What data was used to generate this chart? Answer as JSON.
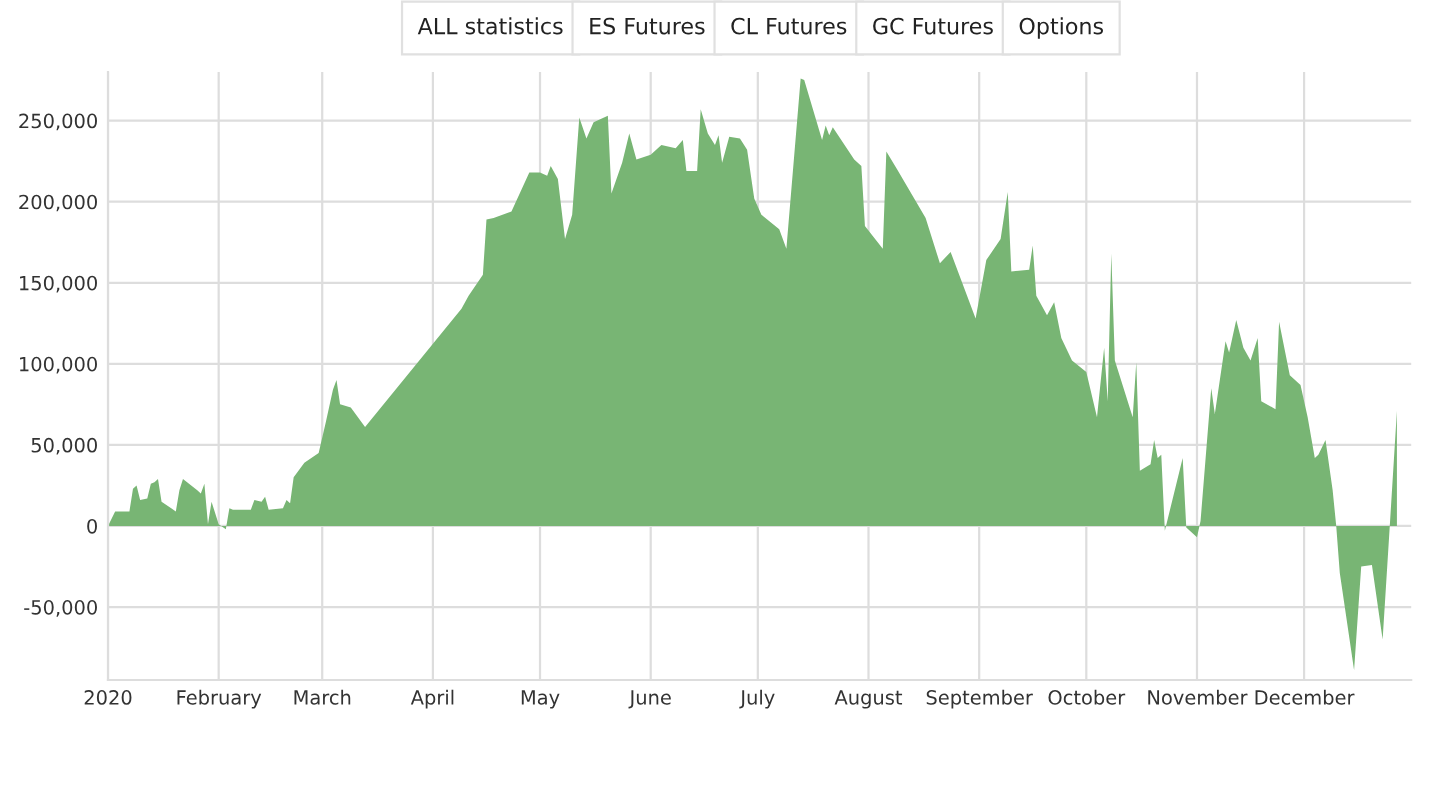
{
  "chart_data": {
    "type": "area",
    "annotations": [
      "ALL statistics",
      "ES Futures",
      "CL Futures",
      "GC Futures",
      "Options"
    ],
    "x": [
      "2020-01-01",
      "2020-01-03",
      "2020-01-07",
      "2020-01-08",
      "2020-01-09",
      "2020-01-10",
      "2020-01-12",
      "2020-01-13",
      "2020-01-14",
      "2020-01-15",
      "2020-01-16",
      "2020-01-20",
      "2020-01-21",
      "2020-01-22",
      "2020-01-26",
      "2020-01-27",
      "2020-01-28",
      "2020-01-29",
      "2020-01-30",
      "2020-02-01",
      "2020-02-03",
      "2020-02-04",
      "2020-02-05",
      "2020-02-10",
      "2020-02-11",
      "2020-02-13",
      "2020-02-14",
      "2020-02-15",
      "2020-02-19",
      "2020-02-20",
      "2020-02-21",
      "2020-02-22",
      "2020-02-25",
      "2020-02-29",
      "2020-03-02",
      "2020-03-04",
      "2020-03-05",
      "2020-03-06",
      "2020-03-09",
      "2020-03-13",
      "2020-04-09",
      "2020-04-11",
      "2020-04-15",
      "2020-04-16",
      "2020-04-18",
      "2020-04-23",
      "2020-04-28",
      "2020-05-01",
      "2020-05-03",
      "2020-05-04",
      "2020-05-06",
      "2020-05-08",
      "2020-05-10",
      "2020-05-12",
      "2020-05-14",
      "2020-05-16",
      "2020-05-18",
      "2020-05-20",
      "2020-05-21",
      "2020-05-24",
      "2020-05-26",
      "2020-05-28",
      "2020-06-01",
      "2020-06-04",
      "2020-06-08",
      "2020-06-10",
      "2020-06-11",
      "2020-06-14",
      "2020-06-15",
      "2020-06-17",
      "2020-06-19",
      "2020-06-20",
      "2020-06-21",
      "2020-06-23",
      "2020-06-26",
      "2020-06-28",
      "2020-06-30",
      "2020-07-02",
      "2020-07-07",
      "2020-07-09",
      "2020-07-13",
      "2020-07-14",
      "2020-07-19",
      "2020-07-20",
      "2020-07-21",
      "2020-07-22",
      "2020-07-28",
      "2020-07-30",
      "2020-07-31",
      "2020-08-05",
      "2020-08-06",
      "2020-08-09",
      "2020-08-17",
      "2020-08-21",
      "2020-08-24",
      "2020-08-31",
      "2020-09-03",
      "2020-09-07",
      "2020-09-09",
      "2020-09-10",
      "2020-09-15",
      "2020-09-16",
      "2020-09-17",
      "2020-09-20",
      "2020-09-22",
      "2020-09-24",
      "2020-09-27",
      "2020-10-01",
      "2020-10-04",
      "2020-10-06",
      "2020-10-07",
      "2020-10-08",
      "2020-10-09",
      "2020-10-14",
      "2020-10-15",
      "2020-10-16",
      "2020-10-19",
      "2020-10-20",
      "2020-10-21",
      "2020-10-22",
      "2020-10-23",
      "2020-10-28",
      "2020-10-29",
      "2020-11-01",
      "2020-11-02",
      "2020-11-05",
      "2020-11-06",
      "2020-11-09",
      "2020-11-10",
      "2020-11-12",
      "2020-11-14",
      "2020-11-16",
      "2020-11-18",
      "2020-11-19",
      "2020-11-23",
      "2020-11-24",
      "2020-11-27",
      "2020-11-30",
      "2020-12-02",
      "2020-12-04",
      "2020-12-05",
      "2020-12-07",
      "2020-12-09",
      "2020-12-10",
      "2020-12-11",
      "2020-12-15",
      "2020-12-17",
      "2020-12-20",
      "2020-12-23",
      "2020-12-25",
      "2020-12-27"
    ],
    "series": [
      {
        "color": "#78b574",
        "values": [
          0,
          9000,
          9000,
          23000,
          25000,
          16000,
          17000,
          26000,
          27000,
          29000,
          15000,
          9000,
          22000,
          29000,
          22000,
          20000,
          26000,
          1000,
          15000,
          1000,
          -2000,
          11000,
          10000,
          10000,
          16000,
          15000,
          18000,
          10000,
          11000,
          16000,
          14000,
          30000,
          39000,
          45000,
          64000,
          84000,
          90000,
          75000,
          73000,
          61000,
          134000,
          142000,
          155000,
          189000,
          190000,
          194000,
          218000,
          218000,
          216000,
          222000,
          214000,
          177000,
          192000,
          252000,
          239000,
          249000,
          251000,
          253000,
          205000,
          224000,
          242000,
          226000,
          229000,
          235000,
          233000,
          238000,
          219000,
          219000,
          257000,
          242000,
          235000,
          241000,
          224000,
          240000,
          239000,
          232000,
          202000,
          192000,
          183000,
          171000,
          276000,
          275000,
          238000,
          247000,
          241000,
          246000,
          226000,
          222000,
          185000,
          171000,
          231000,
          220000,
          190000,
          162000,
          169000,
          128000,
          164000,
          177000,
          206000,
          157000,
          158000,
          173000,
          142000,
          130000,
          138000,
          116000,
          102000,
          95000,
          67000,
          110000,
          77000,
          168000,
          102000,
          67000,
          101000,
          34000,
          38000,
          53000,
          42000,
          44000,
          -3000,
          42000,
          -1000,
          -7000,
          3000,
          85000,
          69000,
          114000,
          107000,
          127000,
          110000,
          102000,
          116000,
          77000,
          72000,
          126000,
          93000,
          87000,
          67000,
          42000,
          44000,
          53000,
          22000,
          0,
          -29000,
          -89000,
          -25000,
          -24000,
          -70000,
          0,
          71000
        ]
      }
    ],
    "xlim": [
      "2020-01-01",
      "2020-12-31"
    ],
    "xticks": [
      {
        "value": "2020-01-01",
        "label": "2020"
      },
      {
        "value": "2020-02-01",
        "label": "February"
      },
      {
        "value": "2020-03-01",
        "label": "March"
      },
      {
        "value": "2020-04-01",
        "label": "April"
      },
      {
        "value": "2020-05-01",
        "label": "May"
      },
      {
        "value": "2020-06-01",
        "label": "June"
      },
      {
        "value": "2020-07-01",
        "label": "July"
      },
      {
        "value": "2020-08-01",
        "label": "August"
      },
      {
        "value": "2020-09-01",
        "label": "September"
      },
      {
        "value": "2020-10-01",
        "label": "October"
      },
      {
        "value": "2020-11-01",
        "label": "November"
      },
      {
        "value": "2020-12-01",
        "label": "December"
      }
    ],
    "ylim": [
      -95000,
      280000
    ],
    "yticks": [
      {
        "value": -50000,
        "label": "-50,000"
      },
      0,
      {
        "value": 50000,
        "label": "50,000"
      },
      {
        "value": 100000,
        "label": "100,000"
      },
      {
        "value": 150000,
        "label": "150,000"
      },
      {
        "value": 200000,
        "label": "200,000"
      },
      {
        "value": 250000,
        "label": "250,000"
      }
    ],
    "grid": true
  }
}
